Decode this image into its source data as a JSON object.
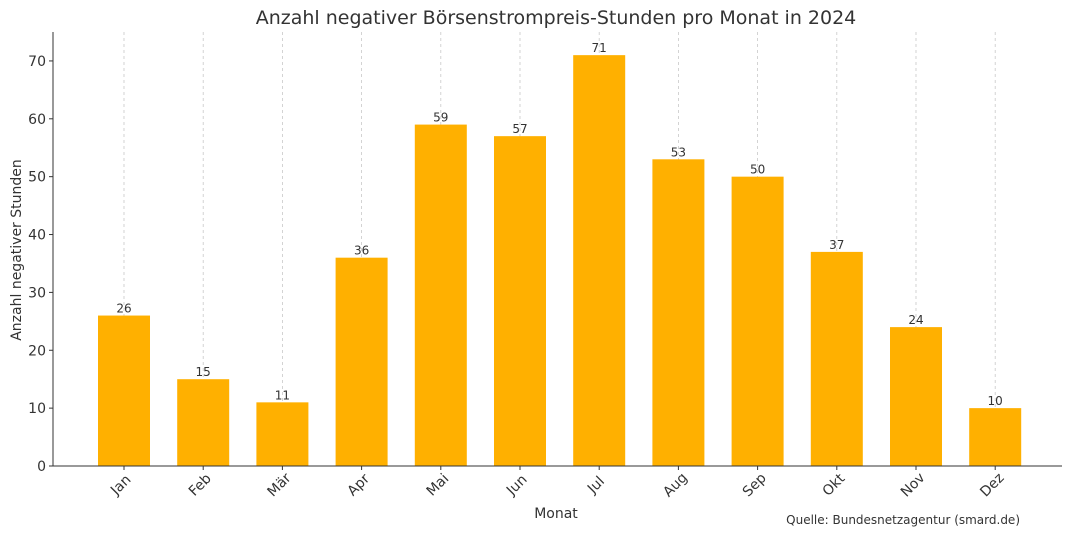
{
  "chart_data": {
    "type": "bar",
    "title": "Anzahl negativer Börsenstrompreis-Stunden pro Monat in 2024",
    "xlabel": "Monat",
    "ylabel": "Anzahl negativer Stunden",
    "categories": [
      "Jan",
      "Feb",
      "Mär",
      "Apr",
      "Mai",
      "Jun",
      "Jul",
      "Aug",
      "Sep",
      "Okt",
      "Nov",
      "Dez"
    ],
    "values": [
      26,
      15,
      11,
      36,
      59,
      57,
      71,
      53,
      50,
      37,
      24,
      10
    ],
    "ylim": [
      0,
      75
    ],
    "yticks": [
      0,
      10,
      20,
      30,
      40,
      50,
      60,
      70
    ],
    "grid": "vertical dashed",
    "bar_color": "#FFB000",
    "data_labels": true
  },
  "source_note": "Quelle: Bundesnetzagentur (smard.de)"
}
